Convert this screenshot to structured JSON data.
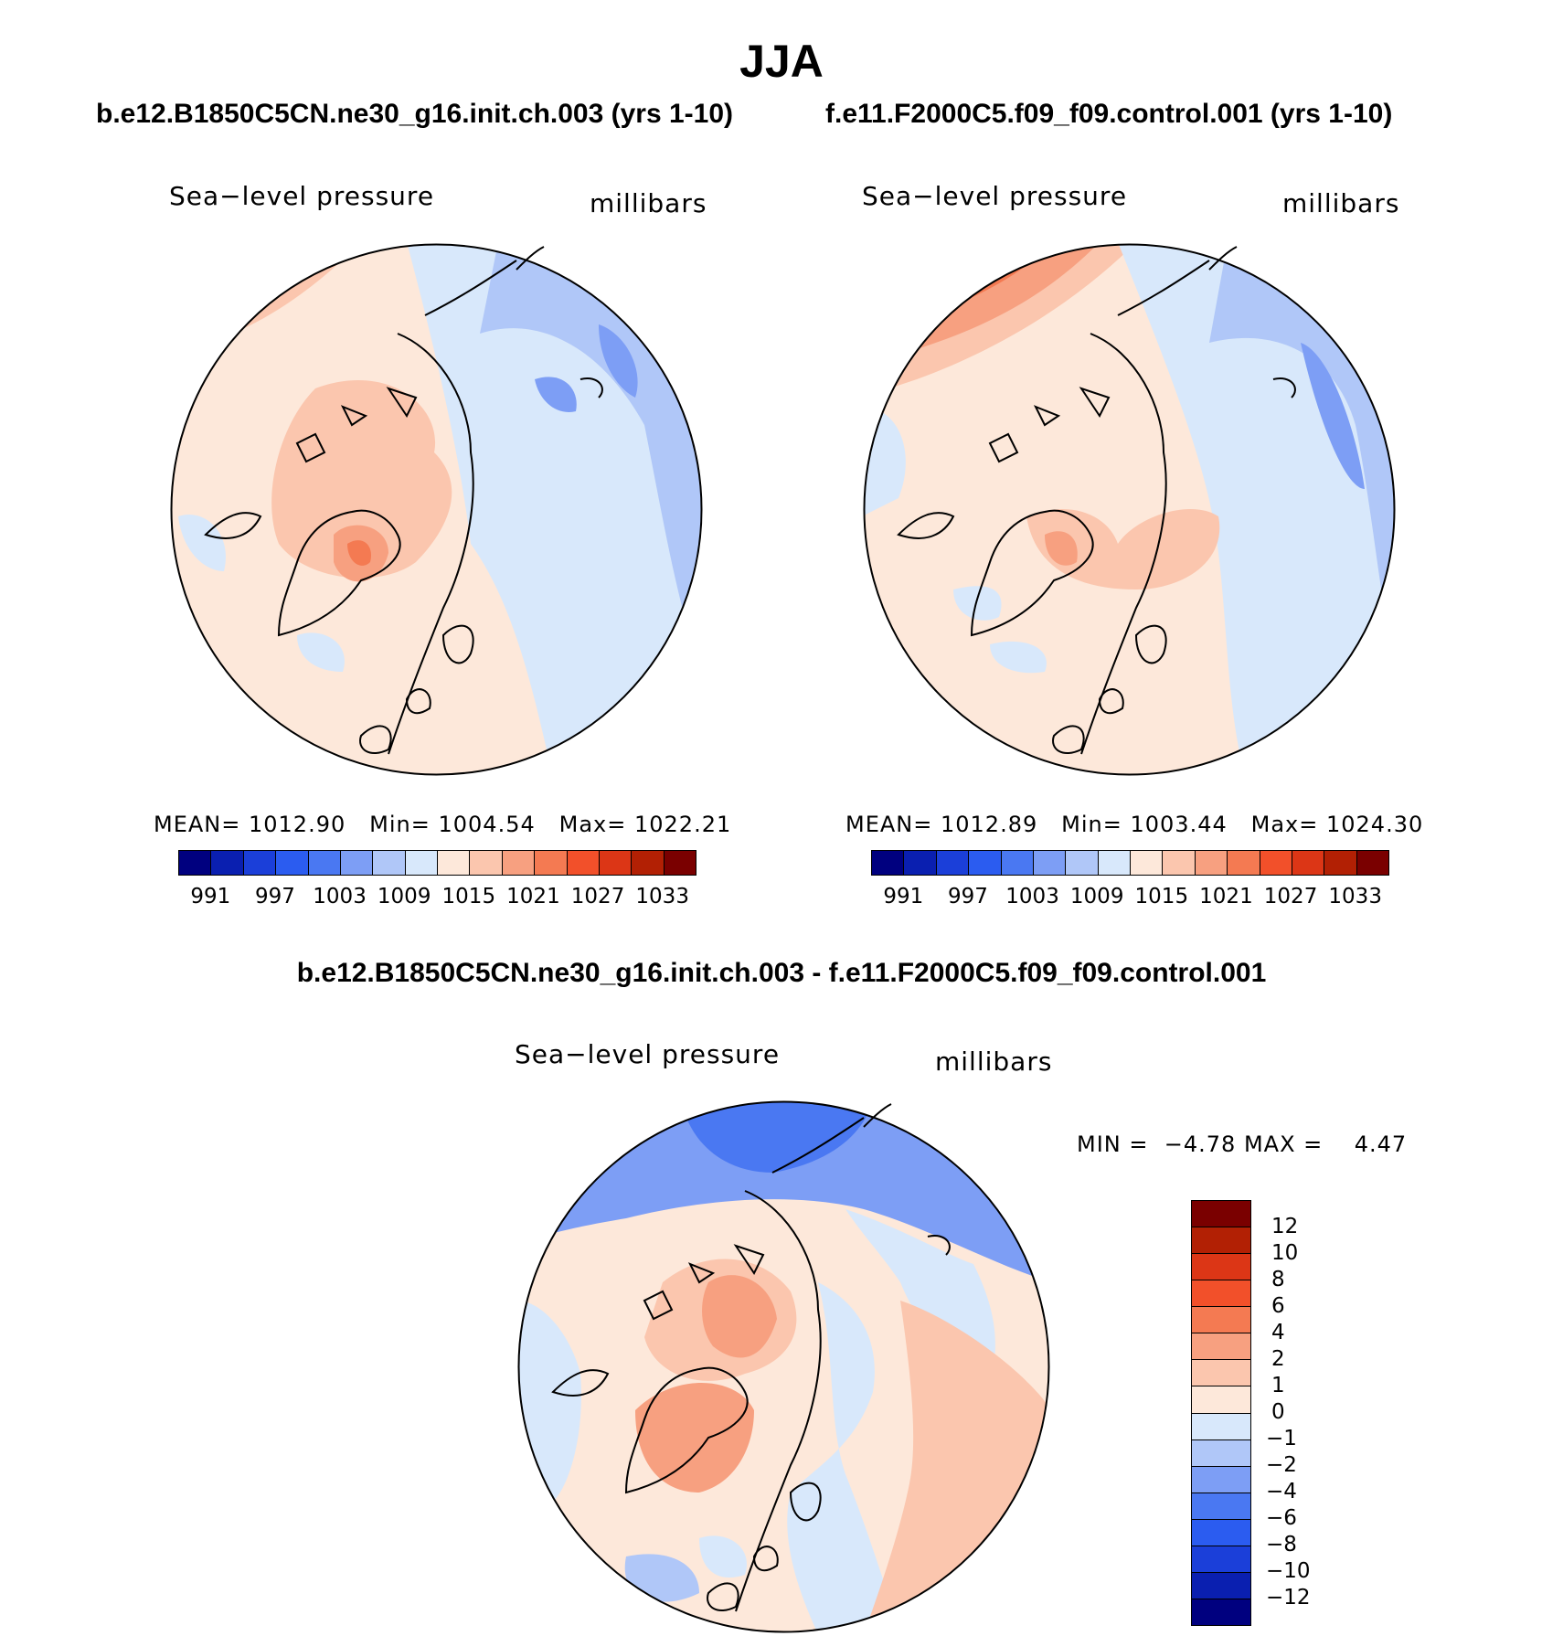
{
  "season_title": "JJA",
  "panels": [
    {
      "case_title": "b.e12.B1850C5CN.ne30_g16.init.ch.003 (yrs 1-10)",
      "variable_label": "Sea−level pressure",
      "units_label": "millibars",
      "mean_label": "MEAN=",
      "mean_value": "1012.90",
      "min_label": "Min=",
      "min_value": "1004.54",
      "max_label": "Max=",
      "max_value": "1022.21"
    },
    {
      "case_title": "f.e11.F2000C5.f09_f09.control.001 (yrs 1-10)",
      "variable_label": "Sea−level pressure",
      "units_label": "millibars",
      "mean_label": "MEAN=",
      "mean_value": "1012.89",
      "min_label": "Min=",
      "min_value": "1003.44",
      "max_label": "Max=",
      "max_value": "1024.30"
    }
  ],
  "difference": {
    "title": "b.e12.B1850C5CN.ne30_g16.init.ch.003 - f.e11.F2000C5.f09_f09.control.001",
    "variable_label": "Sea−level pressure",
    "units_label": "millibars",
    "min_label": "MIN =",
    "min_value": "−4.78",
    "max_label": "MAX =",
    "max_value": "4.47"
  },
  "chart_data": {
    "type": "heatmap",
    "projection": "north-polar-stereographic",
    "field": "Sea-level pressure (JJA)",
    "units": "millibars",
    "abs_colorbar": {
      "colors": [
        "#00007f",
        "#0a1fb0",
        "#1b3fd9",
        "#2b5cf0",
        "#4a78f2",
        "#7d9ef5",
        "#b0c7f8",
        "#d8e8fb",
        "#fde8da",
        "#fbc6ae",
        "#f7a080",
        "#f47a52",
        "#f2502a",
        "#dc3616",
        "#b22004",
        "#7a0000"
      ],
      "tick_labels": [
        "991",
        "997",
        "1003",
        "1009",
        "1015",
        "1021",
        "1027",
        "1033"
      ]
    },
    "diff_colorbar": {
      "colors": [
        "#00007f",
        "#0a1fb0",
        "#1b3fd9",
        "#2b5cf0",
        "#4a78f2",
        "#7d9ef5",
        "#b0c7f8",
        "#d8e8fb",
        "#fde8da",
        "#fbc6ae",
        "#f7a080",
        "#f47a52",
        "#f2502a",
        "#dc3616",
        "#b22004",
        "#7a0000"
      ],
      "tick_labels": [
        "12",
        "10",
        "8",
        "6",
        "4",
        "2",
        "1",
        "0",
        "−1",
        "−2",
        "−4",
        "−6",
        "−8",
        "−10",
        "−12"
      ]
    },
    "panel_stats": [
      {
        "mean": 1012.9,
        "min": 1004.54,
        "max": 1022.21
      },
      {
        "mean": 1012.89,
        "min": 1003.44,
        "max": 1024.3
      },
      {
        "min": -4.78,
        "max": 4.47
      }
    ]
  }
}
